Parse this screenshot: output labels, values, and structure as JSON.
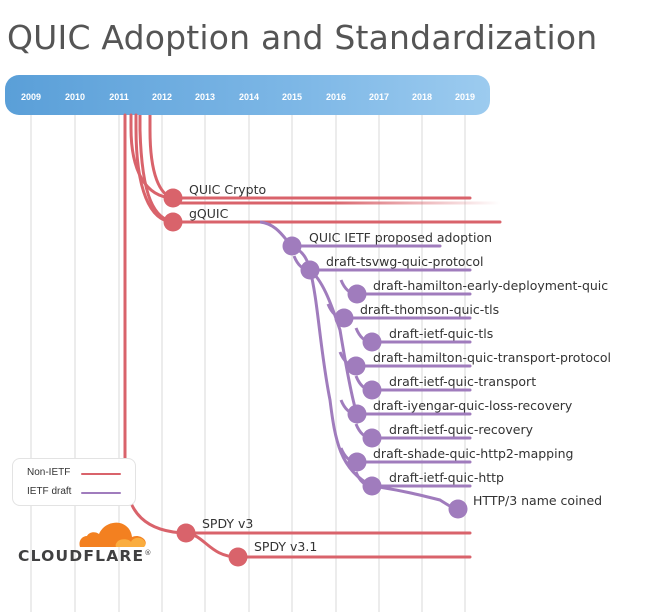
{
  "title": "QUIC Adoption and Standardization",
  "years": [
    "2009",
    "2010",
    "2011",
    "2012",
    "2013",
    "2014",
    "2015",
    "2016",
    "2017",
    "2018",
    "2019"
  ],
  "colors": {
    "non_ietf": "#d9636b",
    "ietf": "#a07cbd",
    "header": "#6aaee0",
    "grid": "#e6e6e6"
  },
  "legend": {
    "non_ietf": "Non-IETF",
    "ietf": "IETF draft"
  },
  "non_ietf_items": [
    "QUIC Crypto",
    "gQUIC",
    "SPDY v3",
    "SPDY v3.1"
  ],
  "ietf_items": [
    "QUIC IETF proposed adoption",
    "draft-tsvwg-quic-protocol",
    "draft-hamilton-early-deployment-quic",
    "draft-thomson-quic-tls",
    "draft-ietf-quic-tls",
    "draft-hamilton-quic-transport-protocol",
    "draft-ietf-quic-transport",
    "draft-iyengar-quic-loss-recovery",
    "draft-ietf-quic-recovery",
    "draft-shade-quic-http2-mapping",
    "draft-ietf-quic-http",
    "HTTP/3 name coined"
  ],
  "logo": {
    "text": "CLOUDFLARE",
    "mark": "®"
  }
}
